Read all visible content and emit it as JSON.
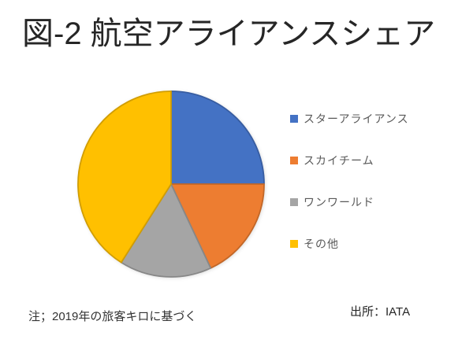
{
  "slide": {
    "title": "図-2 航空アライアンスシェア",
    "note": "注；2019年の旅客キロに基づく",
    "source": "出所：IATA"
  },
  "chart_data": {
    "type": "pie",
    "title": "図-2 航空アライアンスシェア",
    "labels": [
      "スターアライアンス",
      "スカイチーム",
      "ワンワールド",
      "その他"
    ],
    "values": [
      25,
      18,
      16,
      41
    ],
    "values_note": "approximate percent shares estimated from slice angles; no data labels shown in chart",
    "colors": [
      "#4472C4",
      "#ED7D31",
      "#A5A5A5",
      "#FFC000"
    ],
    "legend_position": "right",
    "start_angle": "top",
    "direction": "clockwise"
  }
}
